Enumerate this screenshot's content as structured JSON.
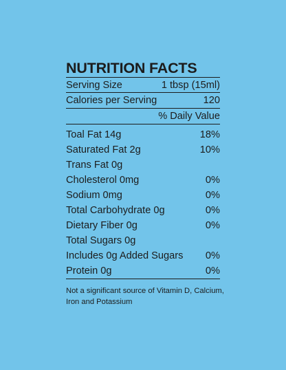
{
  "label": {
    "title": "NUTRITION FACTS",
    "serving_size": {
      "label": "Serving Size",
      "value": "1 tbsp (15ml)"
    },
    "calories": {
      "label": "Calories per Serving",
      "value": "120"
    },
    "daily_value_header": "% Daily Value",
    "nutrients": [
      {
        "name": "Toal Fat 14g",
        "dv": "18%"
      },
      {
        "name": "Saturated Fat 2g",
        "dv": "10%"
      },
      {
        "name": "Trans Fat 0g",
        "dv": ""
      },
      {
        "name": "Cholesterol 0mg",
        "dv": "0%"
      },
      {
        "name": "Sodium 0mg",
        "dv": "0%"
      },
      {
        "name": "Total Carbohydrate 0g",
        "dv": "0%"
      },
      {
        "name": "Dietary Fiber 0g",
        "dv": "0%"
      },
      {
        "name": "Total Sugars 0g",
        "dv": ""
      },
      {
        "name": "Includes 0g Added Sugars",
        "dv": "0%"
      },
      {
        "name": "Protein 0g",
        "dv": "0%"
      }
    ],
    "footnote": "Not a significant source of Vitamin D, Calcium, Iron and Potassium"
  },
  "colors": {
    "background": "#72c4ea",
    "text": "#1c1c1c"
  }
}
